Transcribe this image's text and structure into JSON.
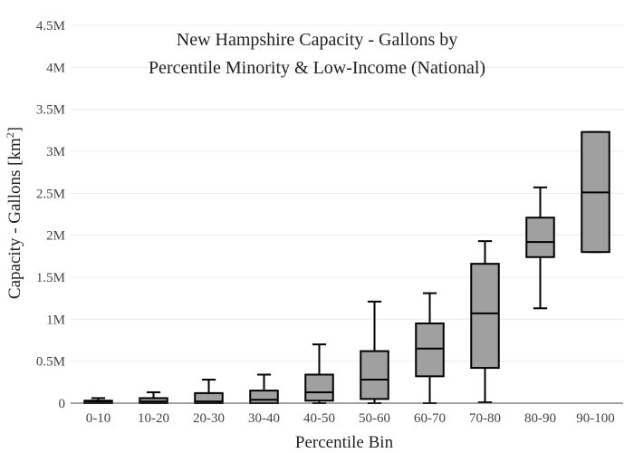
{
  "chart_data": {
    "type": "box",
    "title_lines": [
      "New Hampshire Capacity - Gallons by",
      "Percentile Minority & Low-Income (National)"
    ],
    "xlabel": "Percentile Bin",
    "ylabel_main": "Capacity - Gallons  [km",
    "ylabel_sup": "2",
    "ylabel_end": "]",
    "ylim": [
      0,
      4500000
    ],
    "yticks": [
      {
        "value": 0,
        "label": "0"
      },
      {
        "value": 500000,
        "label": "0.5M"
      },
      {
        "value": 1000000,
        "label": "1M"
      },
      {
        "value": 1500000,
        "label": "1.5M"
      },
      {
        "value": 2000000,
        "label": "2M"
      },
      {
        "value": 2500000,
        "label": "2.5M"
      },
      {
        "value": 3000000,
        "label": "3M"
      },
      {
        "value": 3500000,
        "label": "3.5M"
      },
      {
        "value": 4000000,
        "label": "4M"
      },
      {
        "value": 4500000,
        "label": "4.5M"
      }
    ],
    "grid": true,
    "box_color": "#a0a0a0",
    "line_color": "#000000",
    "categories": [
      "0-10",
      "10-20",
      "20-30",
      "30-40",
      "40-50",
      "50-60",
      "60-70",
      "70-80",
      "80-90",
      "90-100"
    ],
    "boxes": [
      {
        "min": 0,
        "q1": 0,
        "median": 10000,
        "q3": 30000,
        "max": 60000
      },
      {
        "min": 0,
        "q1": 0,
        "median": 20000,
        "q3": 60000,
        "max": 130000
      },
      {
        "min": 0,
        "q1": 0,
        "median": 20000,
        "q3": 120000,
        "max": 280000
      },
      {
        "min": 0,
        "q1": 0,
        "median": 40000,
        "q3": 150000,
        "max": 340000
      },
      {
        "min": 0,
        "q1": 30000,
        "median": 130000,
        "q3": 340000,
        "max": 700000
      },
      {
        "min": 0,
        "q1": 50000,
        "median": 280000,
        "q3": 620000,
        "max": 1210000
      },
      {
        "min": 0,
        "q1": 320000,
        "median": 650000,
        "q3": 950000,
        "max": 1310000
      },
      {
        "min": 10000,
        "q1": 420000,
        "median": 1070000,
        "q3": 1660000,
        "max": 1930000
      },
      {
        "min": 1130000,
        "q1": 1740000,
        "median": 1920000,
        "q3": 2210000,
        "max": 2570000
      },
      {
        "min": 1800000,
        "q1": 1800000,
        "median": 2510000,
        "q3": 3230000,
        "max": 3230000
      }
    ]
  }
}
